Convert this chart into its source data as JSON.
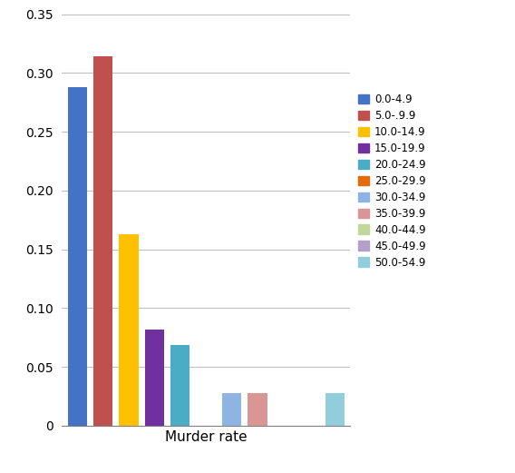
{
  "legend_labels": [
    "0.0-4.9",
    "5.0-.9.9",
    "10.0-14.9",
    "15.0-19.9",
    "20.0-24.9",
    "25.0-29.9",
    "30.0-34.9",
    "35.0-39.9",
    "40.0-44.9",
    "45.0-49.9",
    "50.0-54.9"
  ],
  "values": [
    0.288,
    0.314,
    0.163,
    0.082,
    0.069,
    0.0,
    0.028,
    0.028,
    0.0,
    0.0,
    0.028
  ],
  "colors": [
    "#4472C4",
    "#C0504D",
    "#FFC000",
    "#7030A0",
    "#4BACC6",
    "#E36C09",
    "#8EB4E3",
    "#D99694",
    "#C4D79B",
    "#B1A0C7",
    "#92CDDC"
  ],
  "xlabel": "Murder rate",
  "ylim": [
    0,
    0.35
  ],
  "yticks": [
    0,
    0.05,
    0.1,
    0.15,
    0.2,
    0.25,
    0.3,
    0.35
  ],
  "bar_width": 0.75,
  "background_color": "#ffffff",
  "grid_color": "#bfbfbf"
}
